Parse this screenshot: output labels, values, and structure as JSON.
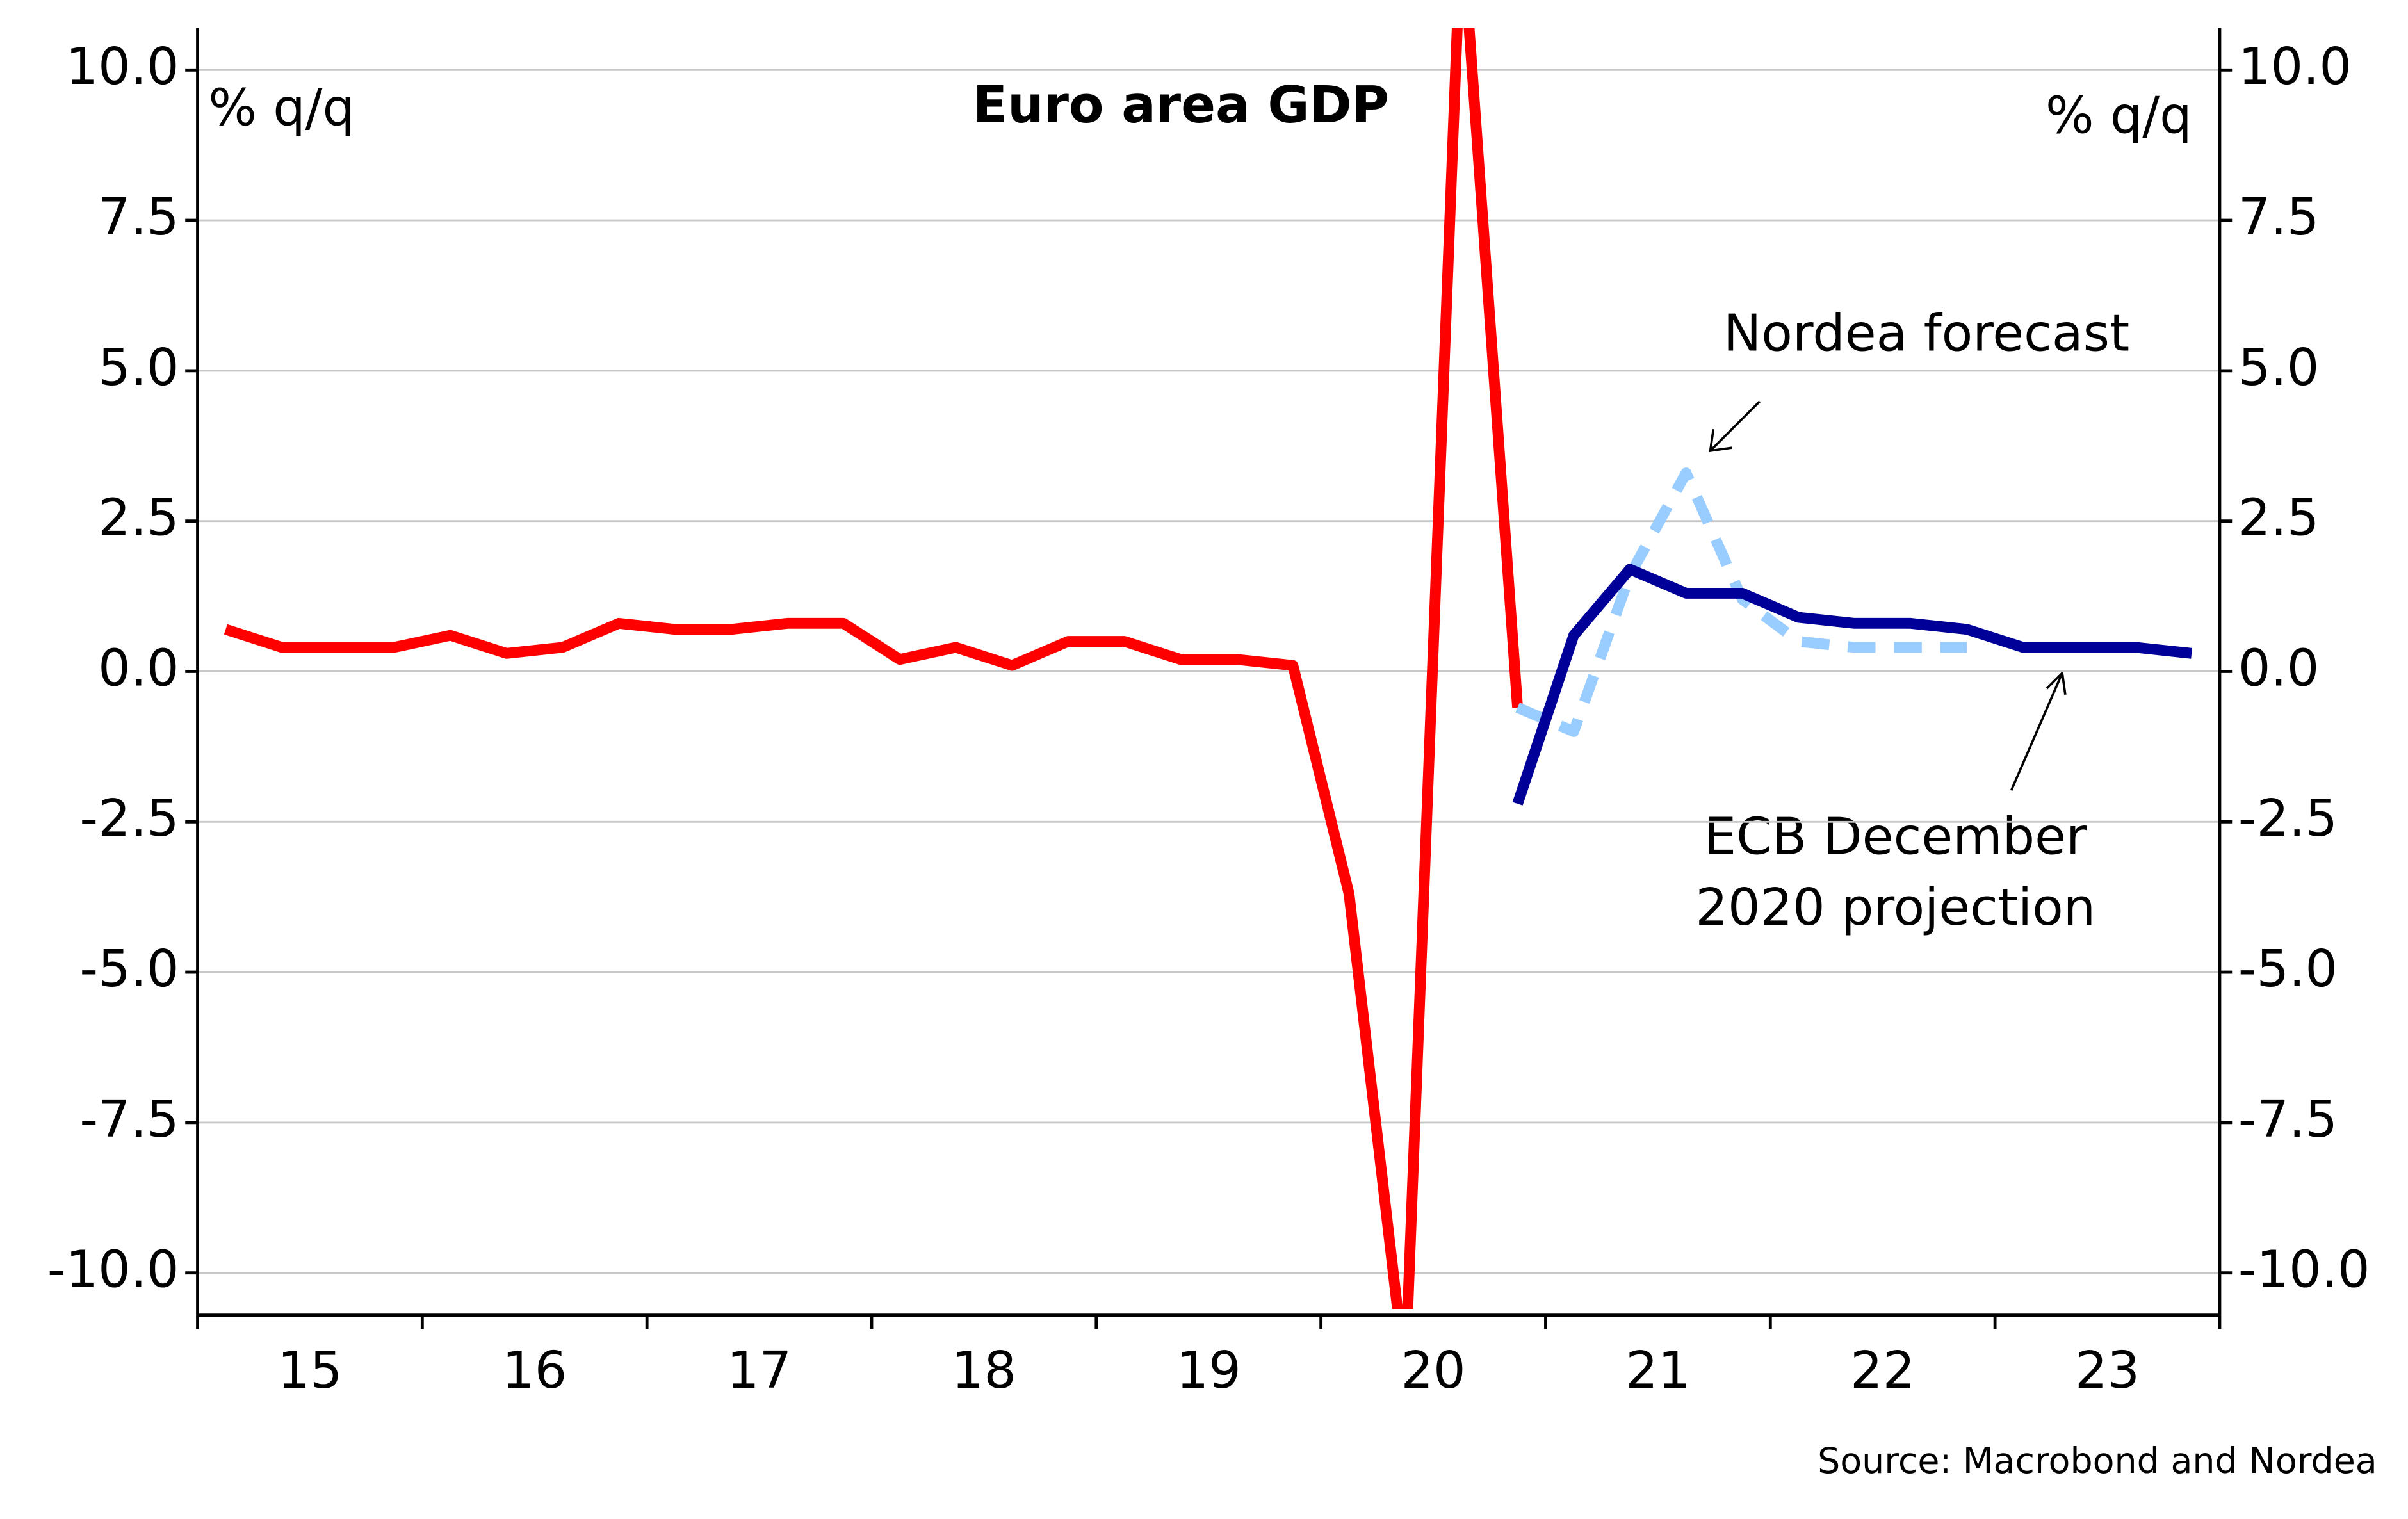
{
  "chart_data": {
    "type": "line",
    "title": "Euro area GDP",
    "y_unit": "% q/q",
    "y2_unit": "% q/q",
    "source": "Source: Macrobond and Nordea",
    "categories": [
      null,
      "15",
      null,
      null,
      null,
      "16",
      null,
      null,
      null,
      "17",
      null,
      null,
      null,
      "18",
      null,
      null,
      null,
      "19",
      null,
      null,
      null,
      "20",
      null,
      null,
      null,
      "21",
      null,
      null,
      null,
      "22",
      null,
      null,
      null,
      "23",
      null,
      null
    ],
    "series": [
      {
        "color": "#ff0000",
        "dash": false,
        "values": [
          0.7,
          0.4,
          0.4,
          0.4,
          0.6,
          0.3,
          0.4,
          0.8,
          0.7,
          0.7,
          0.8,
          0.8,
          0.2,
          0.4,
          0.1,
          0.5,
          0.5,
          0.2,
          0.2,
          0.1,
          -3.7,
          -11.7,
          12.5,
          -0.6,
          null,
          null,
          null,
          null,
          null,
          null,
          null,
          null,
          null,
          null,
          null,
          null
        ]
      },
      {
        "color": "#99ccff",
        "dash": true,
        "values": [
          null,
          null,
          null,
          null,
          null,
          null,
          null,
          null,
          null,
          null,
          null,
          null,
          null,
          null,
          null,
          null,
          null,
          null,
          null,
          null,
          null,
          null,
          null,
          -0.6,
          -1.0,
          1.6,
          3.3,
          1.2,
          0.5,
          0.4,
          0.4,
          0.4,
          null,
          null,
          null,
          null
        ]
      },
      {
        "color": "#000099",
        "dash": false,
        "values": [
          null,
          null,
          null,
          null,
          null,
          null,
          null,
          null,
          null,
          null,
          null,
          null,
          null,
          null,
          null,
          null,
          null,
          null,
          null,
          null,
          null,
          null,
          null,
          -2.2,
          0.6,
          1.7,
          1.3,
          1.3,
          0.9,
          0.8,
          0.8,
          0.7,
          0.4,
          0.4,
          0.4,
          0.3
        ]
      }
    ],
    "annotations": {
      "nordea": "Nordea forecast",
      "ecb": [
        "ECB December",
        "2020 projection"
      ]
    },
    "ylim": [
      -10.6,
      10.7
    ],
    "yticks": [
      {
        "value": -10,
        "label": "-10.0"
      },
      {
        "value": -7.5,
        "label": "-7.5"
      },
      {
        "value": -5,
        "label": "-5.0"
      },
      {
        "value": -2.5,
        "label": "-2.5"
      },
      {
        "value": 0,
        "label": "0.0"
      },
      {
        "value": 2.5,
        "label": "2.5"
      },
      {
        "value": 5,
        "label": "5.0"
      },
      {
        "value": 7.5,
        "label": "7.5"
      },
      {
        "value": 10,
        "label": "10.0"
      }
    ],
    "y2lim": [
      -10.6,
      10.7
    ],
    "y2ticks": [
      {
        "value": -10,
        "label": "-10.0"
      },
      {
        "value": -7.5,
        "label": "-7.5"
      },
      {
        "value": -5,
        "label": "-5.0"
      },
      {
        "value": -2.5,
        "label": "-2.5"
      },
      {
        "value": 0,
        "label": "0.0"
      },
      {
        "value": 2.5,
        "label": "2.5"
      },
      {
        "value": 5,
        "label": "5.0"
      },
      {
        "value": 7.5,
        "label": "7.5"
      },
      {
        "value": 10,
        "label": "10.0"
      }
    ],
    "grid": true
  }
}
